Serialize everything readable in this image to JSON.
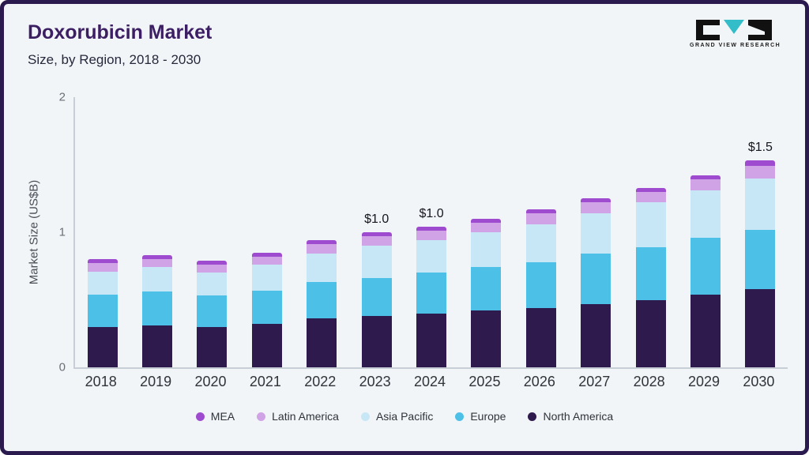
{
  "page": {
    "title": "Doxorubicin Market",
    "subtitle": "Size, by Region, 2018 - 2030",
    "logo_text": "GRAND VIEW RESEARCH"
  },
  "chart_data": {
    "type": "bar",
    "stacked": true,
    "title": "Doxorubicin Market Size, by Region, 2018 - 2030",
    "xlabel": "",
    "ylabel": "Market Size (US$B)",
    "ylim": [
      0,
      2
    ],
    "yticks": [
      0,
      1,
      2
    ],
    "grid": false,
    "legend_position": "bottom",
    "categories": [
      "2018",
      "2019",
      "2020",
      "2021",
      "2022",
      "2023",
      "2024",
      "2025",
      "2026",
      "2027",
      "2028",
      "2029",
      "2030"
    ],
    "series": [
      {
        "name": "North America",
        "color": "#2e1a4d",
        "values": [
          0.3,
          0.31,
          0.3,
          0.32,
          0.36,
          0.38,
          0.4,
          0.42,
          0.44,
          0.47,
          0.5,
          0.54,
          0.58
        ]
      },
      {
        "name": "Europe",
        "color": "#4dc0e8",
        "values": [
          0.24,
          0.25,
          0.23,
          0.25,
          0.27,
          0.28,
          0.3,
          0.32,
          0.34,
          0.37,
          0.39,
          0.42,
          0.44
        ]
      },
      {
        "name": "Asia Pacific",
        "color": "#c8e7f6",
        "values": [
          0.17,
          0.18,
          0.17,
          0.19,
          0.21,
          0.24,
          0.24,
          0.26,
          0.28,
          0.3,
          0.33,
          0.35,
          0.38
        ]
      },
      {
        "name": "Latin America",
        "color": "#d0a3e6",
        "values": [
          0.06,
          0.06,
          0.06,
          0.06,
          0.07,
          0.07,
          0.07,
          0.07,
          0.08,
          0.08,
          0.08,
          0.08,
          0.09
        ]
      },
      {
        "name": "MEA",
        "color": "#9f4bd0",
        "values": [
          0.03,
          0.03,
          0.03,
          0.03,
          0.03,
          0.03,
          0.03,
          0.03,
          0.03,
          0.03,
          0.03,
          0.03,
          0.04
        ]
      }
    ],
    "annotations": [
      {
        "category": "2023",
        "label": "$1.0"
      },
      {
        "category": "2024",
        "label": "$1.0"
      },
      {
        "category": "2030",
        "label": "$1.5"
      }
    ],
    "legend": [
      "MEA",
      "Latin America",
      "Asia Pacific",
      "Europe",
      "North America"
    ],
    "accent_colors": {
      "frame_border": "#2b1a4e",
      "background": "#f2f5f7",
      "title": "#3c1e63",
      "logo_teal": "#33bdc8"
    }
  }
}
